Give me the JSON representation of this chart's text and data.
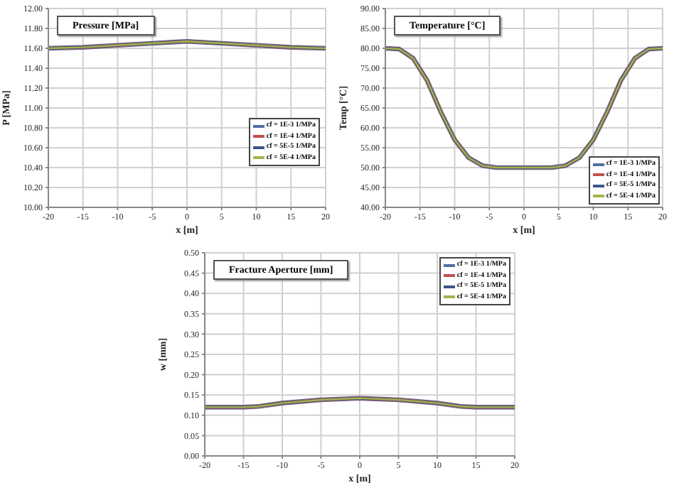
{
  "chart_data": [
    {
      "type": "line",
      "title": "Pressure [MPa]",
      "xlabel": "x [m]",
      "ylabel": "P [MPa]",
      "legend": "right",
      "grid": true,
      "marker": "none",
      "line_style": "solid",
      "x": [
        -20,
        -15,
        -10,
        -5,
        0,
        5,
        10,
        15,
        20
      ],
      "xlim": [
        -20,
        20
      ],
      "xticks": [
        -20,
        -15,
        -10,
        -5,
        0,
        5,
        10,
        15,
        20
      ],
      "ylim": [
        10,
        12
      ],
      "yticks": [
        {
          "value": 10,
          "label": "10.00"
        },
        {
          "value": 10.2,
          "label": "10.20"
        },
        {
          "value": 10.4,
          "label": "10.40"
        },
        {
          "value": 10.6,
          "label": "10.60"
        },
        {
          "value": 10.8,
          "label": "10.80"
        },
        {
          "value": 11,
          "label": "11.00"
        },
        {
          "value": 11.2,
          "label": "11.20"
        },
        {
          "value": 11.4,
          "label": "11.40"
        },
        {
          "value": 11.6,
          "label": "11.60"
        },
        {
          "value": 11.8,
          "label": "11.80"
        },
        {
          "value": 12,
          "label": "12.00"
        }
      ],
      "series": [
        {
          "name": "cf = 1E-3 1/MPa",
          "color": "#4f6fa0",
          "values": [
            11.6,
            11.61,
            11.63,
            11.65,
            11.67,
            11.65,
            11.63,
            11.61,
            11.6
          ]
        },
        {
          "name": "cf = 1E-4 1/MPa",
          "color": "#c0504d",
          "values": [
            11.6,
            11.61,
            11.63,
            11.65,
            11.67,
            11.65,
            11.63,
            11.61,
            11.6
          ]
        },
        {
          "name": "cf = 5E-5 1/MPa",
          "color": "#3b5687",
          "values": [
            11.6,
            11.61,
            11.63,
            11.65,
            11.67,
            11.65,
            11.63,
            11.61,
            11.6
          ]
        },
        {
          "name": "cf = 5E-4 1/MPa",
          "color": "#a4b449",
          "values": [
            11.6,
            11.61,
            11.63,
            11.65,
            11.67,
            11.65,
            11.63,
            11.61,
            11.6
          ]
        }
      ]
    },
    {
      "type": "line",
      "title": "Temperature [°C]",
      "xlabel": "x [m]",
      "ylabel": "Temp [°C]",
      "legend": "bottom right",
      "grid": true,
      "marker": "none",
      "line_style": "solid",
      "x": [
        -20,
        -18,
        -16,
        -14,
        -12,
        -10,
        -8,
        -6,
        -4,
        0,
        4,
        6,
        8,
        10,
        12,
        14,
        16,
        18,
        20
      ],
      "xlim": [
        -20,
        20
      ],
      "xticks": [
        -20,
        -15,
        -10,
        -5,
        0,
        5,
        10,
        15,
        20
      ],
      "ylim": [
        40,
        90
      ],
      "yticks": [
        {
          "value": 40,
          "label": "40.00"
        },
        {
          "value": 45,
          "label": "45.00"
        },
        {
          "value": 50,
          "label": "50.00"
        },
        {
          "value": 55,
          "label": "55.00"
        },
        {
          "value": 60,
          "label": "60.00"
        },
        {
          "value": 65,
          "label": "65.00"
        },
        {
          "value": 70,
          "label": "70.00"
        },
        {
          "value": 75,
          "label": "75.00"
        },
        {
          "value": 80,
          "label": "80.00"
        },
        {
          "value": 85,
          "label": "85.00"
        },
        {
          "value": 90,
          "label": "90.00"
        }
      ],
      "series": [
        {
          "name": "cf = 1E-3 1/MPa",
          "color": "#4f6fa0",
          "values": [
            80,
            79.8,
            77.5,
            72,
            64,
            57,
            52.5,
            50.5,
            50,
            50,
            50,
            50.5,
            52.5,
            57,
            64,
            72,
            77.5,
            79.8,
            80
          ]
        },
        {
          "name": "cf = 1E-4 1/MPa",
          "color": "#c0504d",
          "values": [
            80,
            79.8,
            77.5,
            72,
            64,
            57,
            52.5,
            50.5,
            50,
            50,
            50,
            50.5,
            52.5,
            57,
            64,
            72,
            77.5,
            79.8,
            80
          ]
        },
        {
          "name": "cf = 5E-5 1/MPa",
          "color": "#3b5687",
          "values": [
            80,
            79.8,
            77.5,
            72,
            64,
            57,
            52.5,
            50.5,
            50,
            50,
            50,
            50.5,
            52.5,
            57,
            64,
            72,
            77.5,
            79.8,
            80
          ]
        },
        {
          "name": "cf = 5E-4 1/MPa",
          "color": "#a4b449",
          "values": [
            80,
            79.8,
            77.5,
            72,
            64,
            57,
            52.5,
            50.5,
            50,
            50,
            50,
            50.5,
            52.5,
            57,
            64,
            72,
            77.5,
            79.8,
            80
          ]
        }
      ]
    },
    {
      "type": "line",
      "title": "Fracture Aperture [mm]",
      "xlabel": "x [m]",
      "ylabel": "w [mm]",
      "legend": "top right",
      "grid": true,
      "marker": "none",
      "line_style": "solid",
      "x": [
        -20,
        -15,
        -13,
        -10,
        -5,
        0,
        5,
        10,
        13,
        15,
        20
      ],
      "xlim": [
        -20,
        20
      ],
      "xticks": [
        -20,
        -15,
        -10,
        -5,
        0,
        5,
        10,
        15,
        20
      ],
      "ylim": [
        0,
        0.5
      ],
      "yticks": [
        {
          "value": 0,
          "label": "0.00"
        },
        {
          "value": 0.05,
          "label": "0.05"
        },
        {
          "value": 0.1,
          "label": "0.10"
        },
        {
          "value": 0.15,
          "label": "0.15"
        },
        {
          "value": 0.2,
          "label": "0.20"
        },
        {
          "value": 0.25,
          "label": "0.25"
        },
        {
          "value": 0.3,
          "label": "0.30"
        },
        {
          "value": 0.35,
          "label": "0.35"
        },
        {
          "value": 0.4,
          "label": "0.40"
        },
        {
          "value": 0.45,
          "label": "0.45"
        },
        {
          "value": 0.5,
          "label": "0.50"
        }
      ],
      "series": [
        {
          "name": "cf = 1E-3 1/MPa",
          "color": "#4f6fa0",
          "values": [
            0.12,
            0.12,
            0.122,
            0.13,
            0.138,
            0.142,
            0.138,
            0.13,
            0.122,
            0.12,
            0.12
          ]
        },
        {
          "name": "cf = 1E-4 1/MPa",
          "color": "#c0504d",
          "values": [
            0.12,
            0.12,
            0.122,
            0.13,
            0.138,
            0.142,
            0.138,
            0.13,
            0.122,
            0.12,
            0.12
          ]
        },
        {
          "name": "cf = 5E-5 1/MPa",
          "color": "#3b5687",
          "values": [
            0.12,
            0.12,
            0.122,
            0.13,
            0.138,
            0.142,
            0.138,
            0.13,
            0.122,
            0.12,
            0.12
          ]
        },
        {
          "name": "cf = 5E-4 1/MPa",
          "color": "#a4b449",
          "values": [
            0.12,
            0.12,
            0.122,
            0.13,
            0.138,
            0.142,
            0.138,
            0.13,
            0.122,
            0.12,
            0.12
          ]
        }
      ]
    }
  ]
}
